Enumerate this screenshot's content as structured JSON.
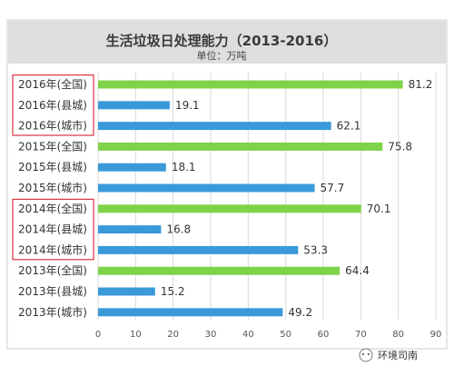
{
  "watermark": "环境司南",
  "chart_data": {
    "type": "bar",
    "orientation": "horizontal",
    "title": "生活垃圾日处理能力（2013-2016）",
    "subtitle": "单位：万吨",
    "categories": [
      "2016年(全国)",
      "2016年(县城)",
      "2016年(城市)",
      "2015年(全国)",
      "2015年(县城)",
      "2015年(城市)",
      "2014年(全国)",
      "2014年(县城)",
      "2014年(城市)",
      "2013年(全国)",
      "2013年(县城)",
      "2013年(城市)"
    ],
    "values": [
      81.2,
      19.1,
      62.1,
      75.8,
      18.1,
      57.7,
      70.1,
      16.8,
      53.3,
      64.4,
      15.2,
      49.2
    ],
    "value_labels": [
      "81.2",
      "19.1",
      "62.1",
      "75.8",
      "18.1",
      "57.7",
      "70.1",
      "16.8",
      "53.3",
      "64.4",
      "15.2",
      "49.2"
    ],
    "bar_colors": [
      "#7ed348",
      "#3a9ad9",
      "#3a9ad9",
      "#7ed348",
      "#3a9ad9",
      "#3a9ad9",
      "#7ed348",
      "#3a9ad9",
      "#3a9ad9",
      "#7ed348",
      "#3a9ad9",
      "#3a9ad9"
    ],
    "highlighted_categories": [
      0,
      1,
      2,
      6,
      7,
      8
    ],
    "highlight_color": "#d9333f",
    "xlim": [
      0,
      90
    ],
    "x_ticks": [
      "0",
      "10",
      "20",
      "30",
      "40",
      "50",
      "60",
      "70",
      "80",
      "90"
    ],
    "grid": true,
    "legend": "none",
    "colors": {
      "national": "#7ed348",
      "county_city": "#3a9ad9",
      "grid": "#d9d9d9",
      "frame": "#cfcfcf",
      "header_bg": "#dedede"
    }
  }
}
